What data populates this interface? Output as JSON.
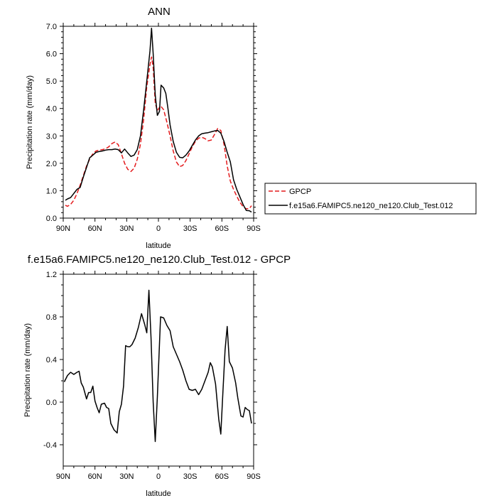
{
  "chart_data": [
    {
      "type": "line",
      "title": "ANN",
      "xlabel": "latitude",
      "ylabel": "Precipitation rate (mm/day)",
      "xlim": [
        90,
        -90
      ],
      "ylim": [
        0,
        7
      ],
      "xticks": [
        {
          "value": 90,
          "label": "90N"
        },
        {
          "value": 60,
          "label": "60N"
        },
        {
          "value": 30,
          "label": "30N"
        },
        {
          "value": 0,
          "label": "0"
        },
        {
          "value": -30,
          "label": "30S"
        },
        {
          "value": -60,
          "label": "60S"
        },
        {
          "value": -90,
          "label": "90S"
        }
      ],
      "yticks": [
        {
          "value": 0,
          "label": "0.0"
        },
        {
          "value": 1,
          "label": "1.0"
        },
        {
          "value": 2,
          "label": "2.0"
        },
        {
          "value": 3,
          "label": "3.0"
        },
        {
          "value": 4,
          "label": "4.0"
        },
        {
          "value": 5,
          "label": "5.0"
        },
        {
          "value": 6,
          "label": "6.0"
        },
        {
          "value": 7,
          "label": "7.0"
        }
      ],
      "legend_position": "right",
      "series": [
        {
          "name": "GPCP",
          "color": "#e41a1c",
          "dash": "dashed",
          "points": [
            [
              88,
              0.47
            ],
            [
              86,
              0.43
            ],
            [
              83,
              0.5
            ],
            [
              80,
              0.65
            ],
            [
              77,
              0.9
            ],
            [
              74,
              1.2
            ],
            [
              71,
              1.55
            ],
            [
              68,
              1.9
            ],
            [
              65,
              2.15
            ],
            [
              62,
              2.35
            ],
            [
              59,
              2.45
            ],
            [
              56,
              2.48
            ],
            [
              53,
              2.5
            ],
            [
              50,
              2.53
            ],
            [
              47,
              2.6
            ],
            [
              44,
              2.72
            ],
            [
              41,
              2.78
            ],
            [
              38,
              2.68
            ],
            [
              35,
              2.35
            ],
            [
              32,
              2.0
            ],
            [
              29,
              1.78
            ],
            [
              26,
              1.7
            ],
            [
              23,
              1.82
            ],
            [
              20,
              2.15
            ],
            [
              17,
              2.7
            ],
            [
              14,
              3.6
            ],
            [
              11,
              4.8
            ],
            [
              8,
              5.6
            ],
            [
              6.5,
              5.88
            ],
            [
              5,
              5.5
            ],
            [
              3,
              4.2
            ],
            [
              1,
              3.92
            ],
            [
              -2,
              4.1
            ],
            [
              -5,
              3.95
            ],
            [
              -8,
              3.5
            ],
            [
              -11,
              3.0
            ],
            [
              -14,
              2.45
            ],
            [
              -17,
              2.05
            ],
            [
              -20,
              1.88
            ],
            [
              -23,
              1.92
            ],
            [
              -26,
              2.1
            ],
            [
              -29,
              2.35
            ],
            [
              -32,
              2.6
            ],
            [
              -35,
              2.8
            ],
            [
              -38,
              2.92
            ],
            [
              -41,
              2.95
            ],
            [
              -44,
              2.9
            ],
            [
              -47,
              2.82
            ],
            [
              -50,
              2.85
            ],
            [
              -53,
              3.05
            ],
            [
              -56,
              3.27
            ],
            [
              -59,
              3.2
            ],
            [
              -62,
              2.7
            ],
            [
              -65,
              1.9
            ],
            [
              -68,
              1.35
            ],
            [
              -71,
              1.05
            ],
            [
              -74,
              0.8
            ],
            [
              -77,
              0.58
            ],
            [
              -80,
              0.42
            ],
            [
              -83,
              0.34
            ],
            [
              -86,
              0.35
            ],
            [
              -88,
              0.45
            ]
          ]
        },
        {
          "name": "f.e15a6.FAMIPC5.ne120_ne120.Club_Test.012",
          "color": "#000000",
          "dash": "solid",
          "points": [
            [
              88,
              0.65
            ],
            [
              86,
              0.7
            ],
            [
              83,
              0.75
            ],
            [
              80,
              0.9
            ],
            [
              77,
              1.05
            ],
            [
              74,
              1.12
            ],
            [
              71,
              1.5
            ],
            [
              68,
              1.85
            ],
            [
              65,
              2.2
            ],
            [
              62,
              2.3
            ],
            [
              59,
              2.4
            ],
            [
              56,
              2.43
            ],
            [
              53,
              2.45
            ],
            [
              50,
              2.48
            ],
            [
              47,
              2.5
            ],
            [
              44,
              2.5
            ],
            [
              41,
              2.52
            ],
            [
              38,
              2.5
            ],
            [
              35,
              2.38
            ],
            [
              32,
              2.52
            ],
            [
              29,
              2.38
            ],
            [
              26,
              2.25
            ],
            [
              23,
              2.3
            ],
            [
              20,
              2.5
            ],
            [
              17,
              3.0
            ],
            [
              14,
              3.95
            ],
            [
              11,
              5.0
            ],
            [
              8,
              6.1
            ],
            [
              6.5,
              6.93
            ],
            [
              5,
              6.0
            ],
            [
              3,
              4.5
            ],
            [
              1,
              3.75
            ],
            [
              -1,
              3.9
            ],
            [
              -2.5,
              4.85
            ],
            [
              -5,
              4.75
            ],
            [
              -7,
              4.55
            ],
            [
              -9,
              4.0
            ],
            [
              -11,
              3.4
            ],
            [
              -14,
              2.8
            ],
            [
              -17,
              2.4
            ],
            [
              -20,
              2.22
            ],
            [
              -23,
              2.2
            ],
            [
              -26,
              2.3
            ],
            [
              -29,
              2.45
            ],
            [
              -32,
              2.65
            ],
            [
              -35,
              2.85
            ],
            [
              -38,
              3.0
            ],
            [
              -41,
              3.08
            ],
            [
              -44,
              3.1
            ],
            [
              -47,
              3.12
            ],
            [
              -50,
              3.15
            ],
            [
              -53,
              3.18
            ],
            [
              -56,
              3.2
            ],
            [
              -59,
              3.1
            ],
            [
              -62,
              2.8
            ],
            [
              -65,
              2.4
            ],
            [
              -68,
              2.05
            ],
            [
              -71,
              1.4
            ],
            [
              -74,
              1.05
            ],
            [
              -77,
              0.78
            ],
            [
              -80,
              0.5
            ],
            [
              -83,
              0.28
            ],
            [
              -86,
              0.27
            ],
            [
              -88,
              0.22
            ]
          ]
        }
      ]
    },
    {
      "type": "line",
      "title": "f.e15a6.FAMIPC5.ne120_ne120.Club_Test.012 - GPCP",
      "xlabel": "latitude",
      "ylabel": "Precipitation rate (mm/day)",
      "xlim": [
        90,
        -90
      ],
      "ylim": [
        -0.6,
        1.2
      ],
      "xticks": [
        {
          "value": 90,
          "label": "90N"
        },
        {
          "value": 60,
          "label": "60N"
        },
        {
          "value": 30,
          "label": "30N"
        },
        {
          "value": 0,
          "label": "0"
        },
        {
          "value": -30,
          "label": "30S"
        },
        {
          "value": -60,
          "label": "60S"
        },
        {
          "value": -90,
          "label": "90S"
        }
      ],
      "yticks": [
        {
          "value": -0.4,
          "label": "-0.4"
        },
        {
          "value": 0.0,
          "label": "0.0"
        },
        {
          "value": 0.4,
          "label": "0.4"
        },
        {
          "value": 0.8,
          "label": "0.8"
        },
        {
          "value": 1.2,
          "label": "1.2"
        }
      ],
      "series": [
        {
          "name": "",
          "color": "#000000",
          "dash": "solid",
          "points": [
            [
              89,
              0.19
            ],
            [
              86,
              0.25
            ],
            [
              83,
              0.28
            ],
            [
              80,
              0.26
            ],
            [
              77,
              0.28
            ],
            [
              75,
              0.29
            ],
            [
              73,
              0.18
            ],
            [
              71,
              0.14
            ],
            [
              68,
              0.03
            ],
            [
              66,
              0.09
            ],
            [
              64,
              0.09
            ],
            [
              62,
              0.15
            ],
            [
              60,
              0.01
            ],
            [
              58,
              -0.05
            ],
            [
              56,
              -0.1
            ],
            [
              54,
              -0.02
            ],
            [
              51,
              -0.01
            ],
            [
              49,
              -0.05
            ],
            [
              47,
              -0.06
            ],
            [
              45,
              -0.2
            ],
            [
              42,
              -0.26
            ],
            [
              39,
              -0.29
            ],
            [
              37,
              -0.09
            ],
            [
              35,
              -0.02
            ],
            [
              33,
              0.15
            ],
            [
              31,
              0.53
            ],
            [
              29,
              0.52
            ],
            [
              27,
              0.52
            ],
            [
              25,
              0.54
            ],
            [
              22,
              0.6
            ],
            [
              19,
              0.7
            ],
            [
              16,
              0.83
            ],
            [
              13,
              0.73
            ],
            [
              11,
              0.65
            ],
            [
              9,
              1.05
            ],
            [
              7,
              0.6
            ],
            [
              5,
              0.0
            ],
            [
              3,
              -0.37
            ],
            [
              1,
              0.05
            ],
            [
              -2,
              0.8
            ],
            [
              -5,
              0.79
            ],
            [
              -8,
              0.72
            ],
            [
              -11,
              0.67
            ],
            [
              -14,
              0.52
            ],
            [
              -17,
              0.45
            ],
            [
              -20,
              0.38
            ],
            [
              -23,
              0.3
            ],
            [
              -26,
              0.2
            ],
            [
              -29,
              0.12
            ],
            [
              -32,
              0.11
            ],
            [
              -35,
              0.12
            ],
            [
              -38,
              0.07
            ],
            [
              -41,
              0.12
            ],
            [
              -44,
              0.2
            ],
            [
              -47,
              0.28
            ],
            [
              -49,
              0.37
            ],
            [
              -51,
              0.33
            ],
            [
              -54,
              0.17
            ],
            [
              -57,
              -0.16
            ],
            [
              -59,
              -0.3
            ],
            [
              -61,
              0.1
            ],
            [
              -63,
              0.49
            ],
            [
              -65,
              0.71
            ],
            [
              -67,
              0.38
            ],
            [
              -70,
              0.32
            ],
            [
              -73,
              0.18
            ],
            [
              -75,
              0.04
            ],
            [
              -78,
              -0.13
            ],
            [
              -80,
              -0.14
            ],
            [
              -82,
              -0.05
            ],
            [
              -84,
              -0.07
            ],
            [
              -86,
              -0.08
            ],
            [
              -88,
              -0.2
            ]
          ]
        }
      ]
    }
  ]
}
